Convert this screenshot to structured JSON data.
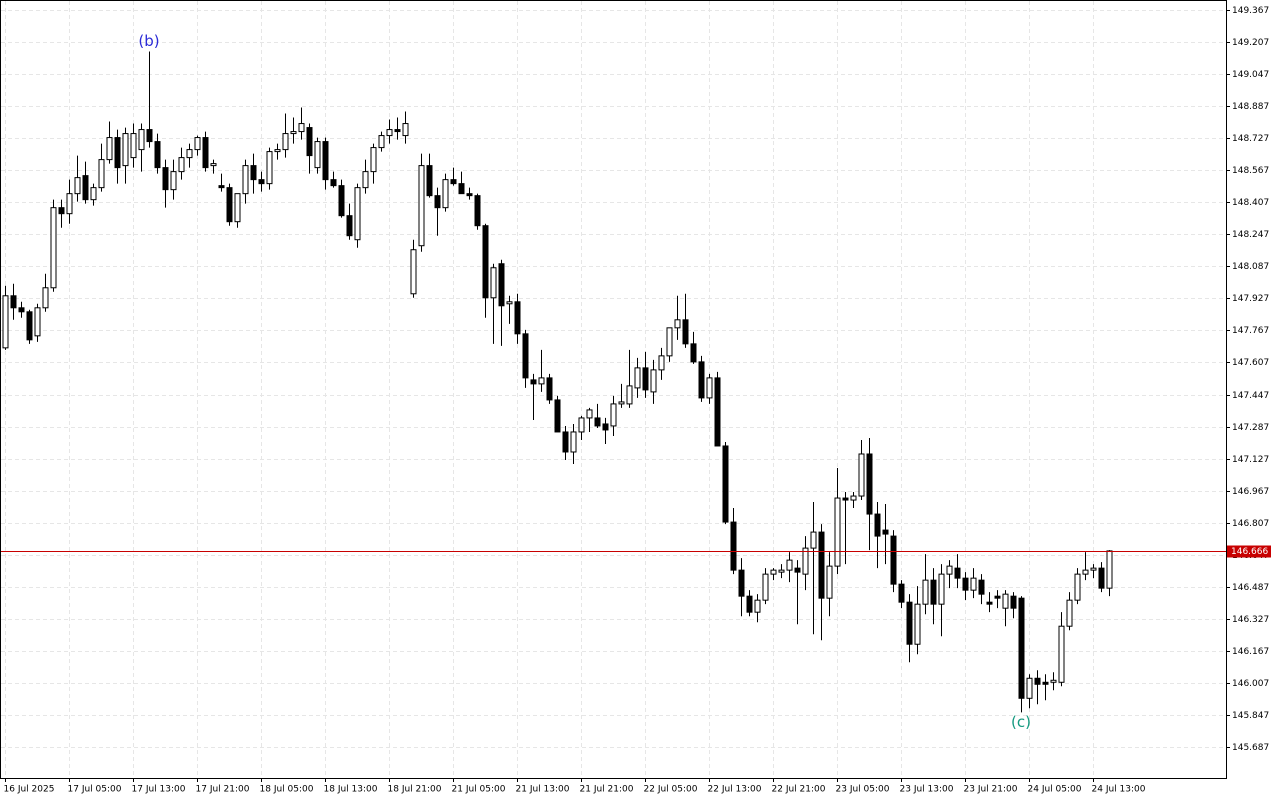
{
  "chart_data": {
    "type": "candlestick",
    "categories": [
      "16 Jul 2025",
      null,
      null,
      null,
      null,
      null,
      null,
      null,
      "17 Jul 05:00",
      null,
      null,
      null,
      null,
      null,
      null,
      null,
      "17 Jul 13:00",
      null,
      null,
      null,
      null,
      null,
      null,
      null,
      "17 Jul 21:00",
      null,
      null,
      null,
      null,
      null,
      null,
      null,
      "18 Jul 05:00",
      null,
      null,
      null,
      null,
      null,
      null,
      null,
      "18 Jul 13:00",
      null,
      null,
      null,
      null,
      null,
      null,
      null,
      "18 Jul 21:00",
      null,
      null,
      null,
      null,
      null,
      null,
      null,
      "21 Jul 05:00",
      null,
      null,
      null,
      null,
      null,
      null,
      null,
      "21 Jul 13:00",
      null,
      null,
      null,
      null,
      null,
      null,
      null,
      "21 Jul 21:00",
      null,
      null,
      null,
      null,
      null,
      null,
      null,
      "22 Jul 05:00",
      null,
      null,
      null,
      null,
      null,
      null,
      null,
      "22 Jul 13:00",
      null,
      null,
      null,
      null,
      null,
      null,
      null,
      "22 Jul 21:00",
      null,
      null,
      null,
      null,
      null,
      null,
      null,
      "23 Jul 05:00",
      null,
      null,
      null,
      null,
      null,
      null,
      null,
      "23 Jul 13:00",
      null,
      null,
      null,
      null,
      null,
      null,
      null,
      "23 Jul 21:00",
      null,
      null,
      null,
      null,
      null,
      null,
      null,
      "24 Jul 05:00",
      null,
      null,
      null,
      null,
      null,
      null,
      null,
      "24 Jul 13:00",
      null,
      null
    ],
    "open": [
      147.68,
      147.94,
      147.88,
      147.86,
      147.74,
      147.88,
      147.98,
      148.38,
      148.35,
      148.45,
      148.54,
      148.42,
      148.48,
      148.62,
      148.73,
      148.59,
      148.63,
      148.67,
      148.77,
      148.71,
      148.58,
      148.47,
      148.56,
      148.63,
      148.67,
      148.73,
      148.59,
      148.49,
      148.48,
      148.31,
      148.45,
      148.59,
      148.52,
      148.5,
      148.66,
      148.67,
      148.75,
      148.76,
      148.78,
      148.58,
      148.71,
      148.52,
      148.49,
      148.34,
      148.22,
      148.48,
      148.56,
      148.68,
      148.74,
      148.77,
      148.74,
      147.95,
      148.19,
      148.59,
      148.44,
      148.38,
      148.52,
      148.5,
      148.45,
      148.44,
      148.29,
      147.93,
      148.1,
      147.9,
      147.91,
      147.75,
      147.52,
      147.5,
      147.53,
      147.42,
      147.26,
      147.16,
      147.26,
      147.33,
      147.33,
      147.3,
      147.29,
      147.4,
      147.4,
      147.48,
      147.58,
      147.46,
      147.57,
      147.64,
      147.78,
      147.82,
      147.7,
      147.61,
      147.43,
      147.53,
      147.19,
      146.81,
      146.57,
      146.44,
      146.36,
      146.42,
      146.55,
      146.56,
      146.57,
      146.58,
      146.55,
      146.68,
      146.76,
      146.43,
      146.59,
      146.93,
      146.92,
      146.94,
      147.15,
      146.85,
      146.77,
      146.74,
      146.5,
      146.41,
      146.2,
      146.4,
      146.52,
      146.4,
      146.55,
      146.58,
      146.53,
      146.47,
      146.52,
      146.41,
      146.44,
      146.38,
      146.44,
      146.43,
      145.93,
      146.03,
      146.01,
      146.01,
      146.01,
      146.29,
      146.42,
      146.55,
      146.57,
      146.58,
      146.48
    ],
    "high": [
      147.99,
      148.0,
      147.91,
      147.87,
      147.9,
      148.05,
      148.42,
      148.42,
      148.52,
      148.64,
      148.61,
      148.5,
      148.7,
      148.81,
      148.77,
      148.78,
      148.8,
      148.8,
      149.16,
      148.75,
      148.62,
      148.62,
      148.68,
      148.7,
      148.74,
      148.76,
      148.62,
      148.55,
      148.5,
      148.45,
      148.62,
      148.65,
      148.56,
      148.68,
      148.7,
      148.85,
      148.83,
      148.88,
      148.8,
      148.73,
      148.73,
      148.56,
      148.52,
      148.4,
      148.5,
      148.62,
      148.7,
      148.76,
      148.82,
      148.83,
      148.86,
      148.22,
      148.65,
      148.65,
      148.48,
      148.55,
      148.58,
      148.56,
      148.48,
      148.45,
      148.3,
      148.1,
      148.12,
      147.94,
      147.95,
      147.77,
      147.55,
      147.67,
      147.55,
      147.44,
      147.29,
      147.3,
      147.34,
      147.38,
      147.4,
      147.33,
      147.44,
      147.5,
      147.67,
      147.63,
      147.66,
      147.62,
      147.68,
      147.78,
      147.94,
      147.95,
      147.76,
      147.64,
      147.55,
      147.56,
      147.21,
      146.88,
      146.63,
      146.47,
      146.45,
      146.58,
      146.58,
      146.6,
      146.66,
      146.62,
      146.74,
      146.91,
      146.8,
      146.66,
      147.08,
      146.96,
      146.96,
      147.22,
      147.23,
      146.91,
      146.9,
      146.77,
      146.52,
      146.45,
      146.49,
      146.65,
      146.58,
      146.6,
      146.62,
      146.65,
      146.56,
      146.58,
      146.55,
      146.46,
      146.47,
      146.47,
      146.46,
      146.44,
      146.05,
      146.07,
      146.05,
      146.06,
      146.36,
      146.46,
      146.58,
      146.66,
      146.6,
      146.61,
      146.67
    ],
    "low": [
      147.67,
      147.82,
      147.83,
      147.7,
      147.71,
      147.86,
      147.96,
      148.28,
      148.3,
      148.41,
      148.4,
      148.39,
      148.46,
      148.6,
      148.5,
      148.5,
      148.58,
      148.56,
      148.68,
      148.55,
      148.38,
      148.42,
      148.52,
      148.58,
      148.64,
      148.56,
      148.55,
      148.46,
      148.29,
      148.28,
      148.4,
      148.45,
      148.46,
      148.47,
      148.62,
      148.63,
      148.7,
      148.72,
      148.55,
      148.55,
      148.47,
      148.48,
      148.33,
      148.22,
      148.18,
      148.45,
      148.5,
      148.66,
      148.7,
      148.72,
      148.7,
      147.93,
      148.16,
      148.43,
      148.24,
      148.36,
      148.49,
      148.45,
      148.42,
      148.27,
      147.83,
      147.7,
      147.69,
      147.8,
      147.7,
      147.48,
      147.32,
      147.46,
      147.4,
      147.26,
      147.12,
      147.1,
      147.22,
      147.26,
      147.28,
      147.2,
      147.24,
      147.38,
      147.38,
      147.43,
      147.43,
      147.4,
      147.52,
      147.61,
      147.72,
      147.68,
      147.6,
      147.41,
      147.4,
      147.19,
      146.8,
      146.55,
      146.34,
      146.34,
      146.31,
      146.4,
      146.52,
      146.53,
      146.51,
      146.3,
      146.47,
      146.25,
      146.22,
      146.34,
      146.55,
      146.6,
      146.88,
      146.92,
      146.67,
      146.58,
      146.6,
      146.46,
      146.38,
      146.11,
      146.15,
      146.35,
      146.3,
      146.24,
      146.48,
      146.48,
      146.42,
      146.43,
      146.4,
      146.36,
      146.38,
      146.29,
      146.33,
      145.86,
      145.88,
      145.9,
      145.92,
      145.97,
      145.99,
      146.27,
      146.4,
      146.52,
      146.53,
      146.46,
      146.44
    ],
    "close": [
      147.94,
      147.88,
      147.86,
      147.72,
      147.88,
      147.98,
      148.38,
      148.35,
      148.45,
      148.53,
      148.42,
      148.48,
      148.62,
      148.73,
      148.58,
      148.75,
      148.75,
      148.77,
      148.71,
      148.58,
      148.47,
      148.56,
      148.63,
      148.67,
      148.73,
      148.58,
      148.6,
      148.48,
      148.31,
      148.45,
      148.59,
      148.52,
      148.5,
      148.66,
      148.67,
      148.75,
      148.76,
      148.8,
      148.64,
      148.71,
      148.52,
      148.49,
      148.34,
      148.24,
      148.48,
      148.56,
      148.68,
      148.74,
      148.77,
      148.76,
      148.8,
      148.17,
      148.59,
      148.44,
      148.38,
      148.52,
      148.5,
      148.45,
      148.44,
      148.29,
      147.93,
      148.08,
      147.89,
      147.91,
      147.75,
      147.53,
      147.5,
      147.53,
      147.42,
      147.26,
      147.16,
      147.26,
      147.33,
      147.37,
      147.29,
      147.27,
      147.4,
      147.41,
      147.49,
      147.58,
      147.47,
      147.57,
      147.64,
      147.78,
      147.82,
      147.7,
      147.61,
      147.43,
      147.53,
      147.19,
      146.81,
      146.57,
      146.44,
      146.36,
      146.42,
      146.55,
      146.57,
      146.57,
      146.62,
      146.56,
      146.68,
      146.76,
      146.43,
      146.59,
      146.93,
      146.92,
      146.94,
      147.15,
      146.85,
      146.74,
      146.75,
      146.5,
      146.41,
      146.2,
      146.4,
      146.52,
      146.4,
      146.55,
      146.59,
      146.53,
      146.47,
      146.53,
      146.45,
      146.4,
      146.43,
      146.45,
      146.38,
      145.93,
      146.03,
      146.0,
      146.0,
      146.02,
      146.29,
      146.42,
      146.55,
      146.57,
      146.58,
      146.48,
      146.666
    ],
    "ylim": [
      145.532,
      149.417
    ],
    "yticks": [
      149.367,
      149.207,
      149.047,
      148.887,
      148.727,
      148.567,
      148.407,
      148.247,
      148.087,
      147.927,
      147.767,
      147.607,
      147.447,
      147.287,
      147.127,
      146.967,
      146.807,
      146.647,
      146.487,
      146.327,
      146.167,
      146.007,
      145.847,
      145.687
    ],
    "current_price": 146.666,
    "current_price_color": "#c80000",
    "up_color": "#ffffff",
    "down_color": "#000000",
    "grid": true,
    "annotations": [
      {
        "text": "(b)",
        "color": "#2b2bd6"
      },
      {
        "text": "(c)",
        "color": "#149a80"
      }
    ]
  }
}
